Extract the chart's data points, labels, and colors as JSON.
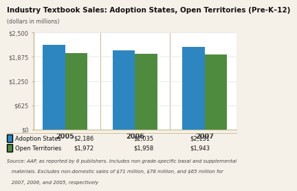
{
  "title": "Industry Textbook Sales: Adoption States, Open Territories (Pre-K–12)",
  "subtitle": "(dollars in millions)",
  "years": [
    "2005",
    "2006",
    "2007"
  ],
  "adoption_states": [
    2186,
    2035,
    2131
  ],
  "open_territories": [
    1972,
    1958,
    1943
  ],
  "adoption_color": "#2E86C1",
  "open_color": "#4E8B3F",
  "ylim": [
    0,
    2500
  ],
  "yticks": [
    0,
    625,
    1250,
    1875,
    2500
  ],
  "ytick_labels": [
    "$0",
    "$625",
    "$1,250",
    "$1,875",
    "$2,500"
  ],
  "legend_labels": [
    "Adoption States",
    "Open Territories"
  ],
  "legend_values_2005": [
    "$2,186",
    "$1,972"
  ],
  "legend_values_2006": [
    "$2,035",
    "$1,958"
  ],
  "legend_values_2007": [
    "$2,131",
    "$1,943"
  ],
  "source_line1": "Source: AAP, as reported by 6 publishers. Includes non grade-specific basal and supplemental",
  "source_line2": "   materials. Excludes non-domestic sales of $71 million, $78 million, and $65 million for",
  "source_line3": "   2007, 2006, and 2005, respectively",
  "bar_width": 0.32,
  "bg_color": "#FFFFFF",
  "fig_bg_color": "#F5F0E8",
  "spine_color": "#C8B98A",
  "grid_color": "#DDDDDD",
  "divider_color": "#C8B98A"
}
